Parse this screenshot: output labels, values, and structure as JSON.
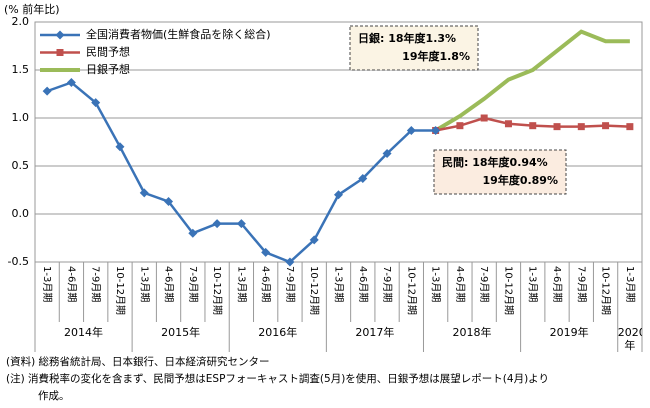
{
  "chart_data": {
    "type": "line",
    "y_axis_label": "(% 前年比)",
    "categories": [
      "1-3月期",
      "4-6月期",
      "7-9月期",
      "10-12月期",
      "1-3月期",
      "4-6月期",
      "7-9月期",
      "10-12月期",
      "1-3月期",
      "4-6月期",
      "7-9月期",
      "10-12月期",
      "1-3月期",
      "4-6月期",
      "7-9月期",
      "10-12月期",
      "1-3月期",
      "4-6月期",
      "7-9月期",
      "10-12月期",
      "1-3月期",
      "4-6月期",
      "7-9月期",
      "10-12月期",
      "1-3月期"
    ],
    "year_labels": [
      "2014年",
      "2015年",
      "2016年",
      "2017年",
      "2018年",
      "2019年",
      "2020年"
    ],
    "series": [
      {
        "name": "全国消費者物価(生鮮食品を除く総合)",
        "color": "#3a73b7",
        "marker": "diamond",
        "width": 2.5,
        "values": [
          1.28,
          1.37,
          1.16,
          0.7,
          0.22,
          0.13,
          -0.2,
          -0.1,
          -0.1,
          -0.4,
          -0.5,
          -0.27,
          0.2,
          0.37,
          0.63,
          0.87,
          0.87,
          null,
          null,
          null,
          null,
          null,
          null,
          null,
          null
        ]
      },
      {
        "name": "民間予想",
        "color": "#c0504d",
        "marker": "square",
        "width": 2.5,
        "values": [
          null,
          null,
          null,
          null,
          null,
          null,
          null,
          null,
          null,
          null,
          null,
          null,
          null,
          null,
          null,
          null,
          0.87,
          0.92,
          1.0,
          0.94,
          0.92,
          0.91,
          0.91,
          0.92,
          0.91
        ]
      },
      {
        "name": "日銀予想",
        "color": "#9bbb59",
        "marker": "none",
        "width": 4,
        "values": [
          null,
          null,
          null,
          null,
          null,
          null,
          null,
          null,
          null,
          null,
          null,
          null,
          null,
          null,
          null,
          null,
          0.87,
          1.02,
          1.2,
          1.4,
          1.5,
          1.7,
          1.9,
          1.8,
          1.8
        ]
      }
    ],
    "ylim": [
      -0.5,
      2.0
    ],
    "yticks": [
      {
        "value": 2.0,
        "label": "2.0"
      },
      1.5,
      {
        "value": 1.0,
        "label": "1.0"
      },
      0.5,
      {
        "value": 0.0,
        "label": "0.0"
      },
      -0.5
    ],
    "grid": true,
    "legend": "upper left",
    "annotations": [
      {
        "lines": [
          "日銀: 18年度1.3%",
          "19年度1.8%"
        ],
        "bg": "#fbf4e4"
      },
      {
        "lines": [
          "民間: 18年度0.94%",
          "19年度0.89%"
        ],
        "bg": "#fbece0"
      }
    ],
    "notes": [
      "(資料) 総務省統計局、日本銀行、日本経済研究センター",
      "(注) 消費税率の変化を含まず、民間予想はESPフォーキャスト調査(5月)を使用、日銀予想は展望レポート(4月)より",
      "作成。"
    ]
  }
}
